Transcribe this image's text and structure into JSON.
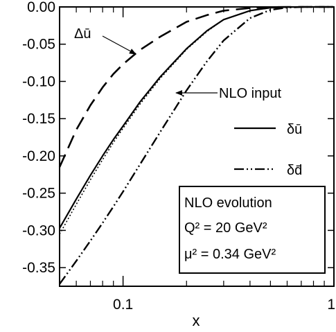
{
  "chart_data": {
    "type": "line",
    "title": "",
    "xlabel": "x",
    "ylabel": "",
    "xscale": "log",
    "xlim": [
      0.05,
      1
    ],
    "ylim": [
      -0.375,
      0
    ],
    "x_ticks": [
      {
        "value": 0.1,
        "label": "0.1"
      },
      {
        "value": 1,
        "label": "1"
      }
    ],
    "y_ticks": [
      {
        "value": 0.0,
        "label": "0.00"
      },
      {
        "value": -0.05,
        "label": "-0.05"
      },
      {
        "value": -0.1,
        "label": "-0.10"
      },
      {
        "value": -0.15,
        "label": "-0.15"
      },
      {
        "value": -0.2,
        "label": "-0.20"
      },
      {
        "value": -0.25,
        "label": "-0.25"
      },
      {
        "value": -0.3,
        "label": "-0.30"
      },
      {
        "value": -0.35,
        "label": "-0.35"
      }
    ],
    "grid": false,
    "legend": {
      "placement": "right",
      "entries": [
        {
          "label": "δū",
          "style": "solid"
        },
        {
          "label": "δd̄",
          "style": "dash-dot-dot"
        }
      ]
    },
    "annotations": [
      {
        "text": "Δū",
        "points_to": "dashed curve"
      },
      {
        "text": "NLO input",
        "points_to": "dotted curve"
      }
    ],
    "info_box": {
      "lines": [
        "NLO evolution",
        "Q² = 20 GeV²",
        "μ² = 0.34 GeV²"
      ]
    },
    "series": [
      {
        "label": "Δū",
        "style": "dashed",
        "x": [
          0.05,
          0.06,
          0.07,
          0.08,
          0.09,
          0.1,
          0.12,
          0.15,
          0.2,
          0.25,
          0.3,
          0.4,
          0.5,
          0.6,
          0.7,
          0.8,
          1.0
        ],
        "y": [
          -0.215,
          -0.165,
          -0.132,
          -0.108,
          -0.09,
          -0.077,
          -0.058,
          -0.04,
          -0.02,
          -0.011,
          -0.005,
          -0.0015,
          -0.0003,
          0,
          0,
          0,
          0
        ]
      },
      {
        "label": "δū",
        "style": "solid",
        "x": [
          0.05,
          0.06,
          0.07,
          0.08,
          0.09,
          0.1,
          0.12,
          0.15,
          0.2,
          0.25,
          0.3,
          0.4,
          0.5,
          0.6,
          0.7,
          0.8,
          1.0
        ],
        "y": [
          -0.297,
          -0.258,
          -0.226,
          -0.2,
          -0.178,
          -0.16,
          -0.128,
          -0.094,
          -0.056,
          -0.032,
          -0.017,
          -0.005,
          -0.001,
          -0.0002,
          0,
          0,
          0
        ]
      },
      {
        "label": "NLO input",
        "style": "dotted",
        "x": [
          0.05,
          0.06,
          0.07,
          0.08,
          0.09,
          0.1,
          0.12,
          0.15,
          0.2,
          0.25,
          0.3,
          0.4,
          0.5,
          0.6,
          0.7,
          0.8,
          1.0
        ],
        "y": [
          -0.305,
          -0.265,
          -0.232,
          -0.205,
          -0.182,
          -0.163,
          -0.131,
          -0.096,
          -0.057,
          -0.033,
          -0.017,
          -0.005,
          -0.001,
          -0.0002,
          0,
          0,
          0
        ]
      },
      {
        "label": "δd̄",
        "style": "dash-dot-dot",
        "x": [
          0.05,
          0.06,
          0.07,
          0.08,
          0.09,
          0.1,
          0.12,
          0.15,
          0.2,
          0.25,
          0.3,
          0.4,
          0.5,
          0.6,
          0.7,
          0.8,
          1.0
        ],
        "y": [
          -0.372,
          -0.341,
          -0.314,
          -0.29,
          -0.268,
          -0.248,
          -0.212,
          -0.168,
          -0.112,
          -0.073,
          -0.045,
          -0.015,
          -0.004,
          -0.0008,
          -0.0001,
          0,
          0
        ]
      }
    ]
  }
}
